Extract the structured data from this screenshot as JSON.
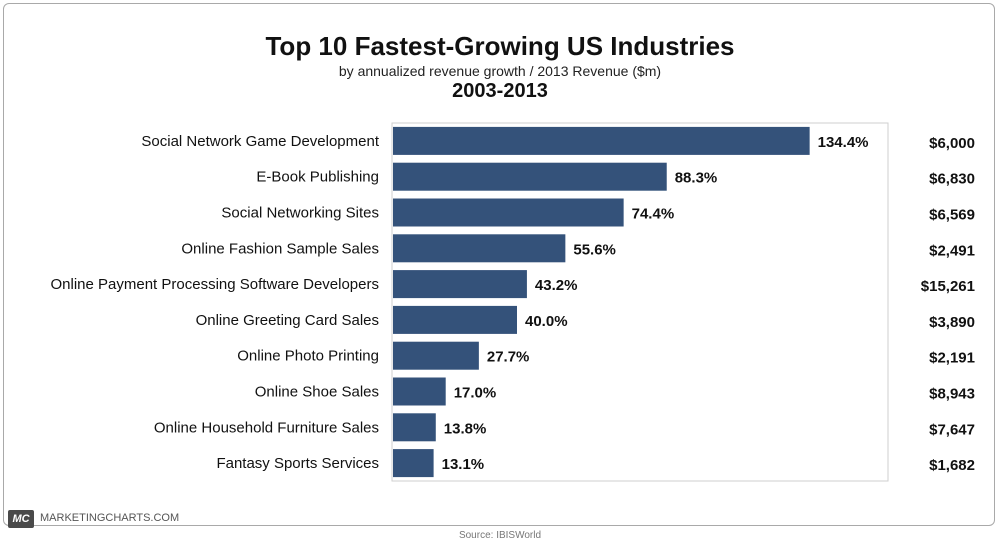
{
  "chart_data": {
    "type": "bar",
    "orientation": "horizontal",
    "title": "Top 10 Fastest-Growing US Industries",
    "subtitle": "by annualized revenue growth / 2013 Revenue ($m)",
    "period": "2003-2013",
    "categories": [
      "Social Network Game Development",
      "E-Book Publishing",
      "Social Networking Sites",
      "Online Fashion Sample Sales",
      "Online Payment Processing Software Developers",
      "Online Greeting Card Sales",
      "Online Photo Printing",
      "Online Shoe Sales",
      "Online Household Furniture Sales",
      "Fantasy Sports Services"
    ],
    "values": [
      134.4,
      88.3,
      74.4,
      55.6,
      43.2,
      40.0,
      27.7,
      17.0,
      13.8,
      13.1
    ],
    "value_labels": [
      "134.4%",
      "88.3%",
      "74.4%",
      "55.6%",
      "43.2%",
      "40.0%",
      "27.7%",
      "17.0%",
      "13.8%",
      "13.1%"
    ],
    "revenue_labels": [
      "$6,000",
      "$6,830",
      "$6,569",
      "$2,491",
      "$15,261",
      "$3,890",
      "$2,191",
      "$8,943",
      "$7,647",
      "$1,682"
    ],
    "xlim": [
      0,
      160
    ],
    "grid": false,
    "legend": "none",
    "bar_color": "#34527a"
  },
  "footer": {
    "logo_text": "MC",
    "brand": "MARKETINGCHARTS.COM",
    "source": "Source: IBISWorld"
  }
}
